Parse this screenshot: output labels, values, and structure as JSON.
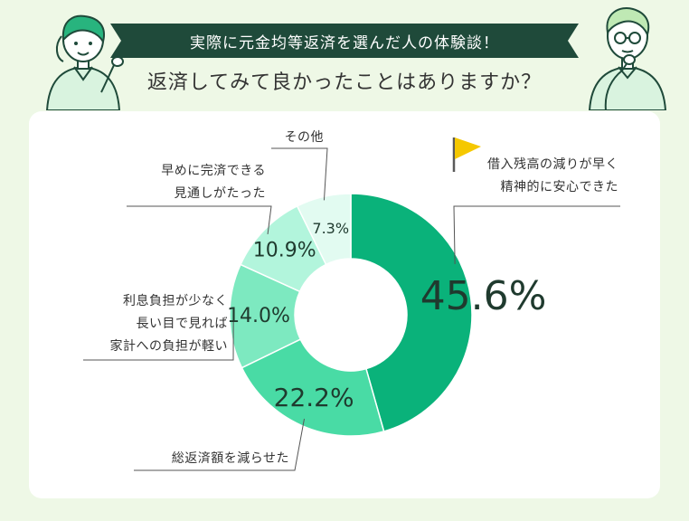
{
  "header": {
    "banner": "実際に元金均等返済を選んだ人の体験談！",
    "question": "返済してみて良かったことはありますか？"
  },
  "colors": {
    "banner": "#1f4a3a",
    "background": "#eef8e6",
    "accent_flag": "#f5c800"
  },
  "chart_data": {
    "type": "pie",
    "donut": true,
    "series": [
      {
        "categories": [
          "借入残高の減りが早く精神的に安心できた",
          "総返済額を減らせた",
          "利息負担が少なく長い目で見れば家計への負担が軽い",
          "早めに完済できる見通しがたった",
          "その他"
        ],
        "values": [
          45.6,
          22.2,
          14.0,
          10.9,
          7.3
        ],
        "value_labels": [
          "45.6%",
          "22.2%",
          "14.0%",
          "10.9%",
          "7.3%"
        ],
        "colors": [
          "#0ab27a",
          "#49dba5",
          "#7de9c0",
          "#b2f5dc",
          "#e2fbf1"
        ]
      }
    ],
    "category_lines": [
      [
        "借入残高の減りが早く",
        "精神的に安心できた"
      ],
      [
        "総返済額を減らせた"
      ],
      [
        "利息負担が少なく",
        "長い目で見れば",
        "家計への負担が軽い"
      ],
      [
        "早めに完済できる",
        "見通しがたった"
      ],
      [
        "その他"
      ]
    ]
  }
}
